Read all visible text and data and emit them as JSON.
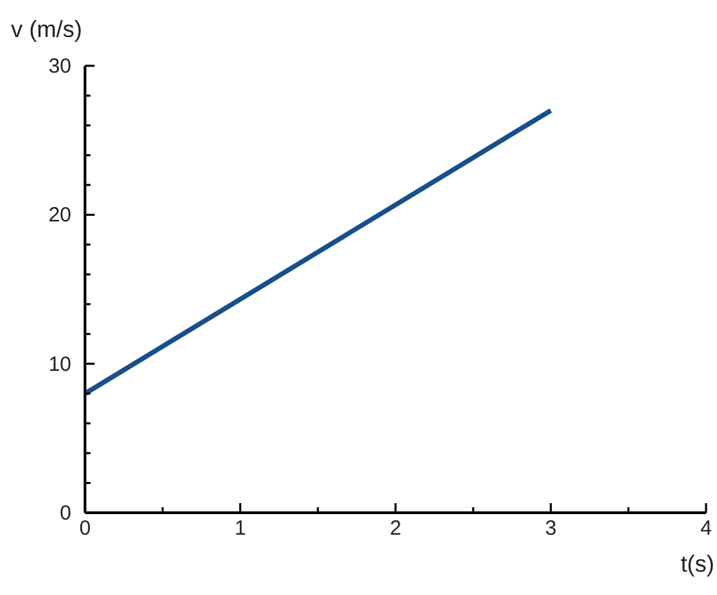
{
  "chart_data": {
    "type": "line",
    "xlabel": "t(s)",
    "ylabel": "v (m/s)",
    "x": [
      0,
      3
    ],
    "series": [
      {
        "color": "#174f8c",
        "values": [
          8,
          27
        ]
      }
    ],
    "xlim": [
      0,
      4
    ],
    "ylim": [
      0,
      30
    ],
    "xticks": [
      0,
      {
        "value": 0.5,
        "label": null
      },
      1,
      {
        "value": 1.5,
        "label": null
      },
      2,
      {
        "value": 2.5,
        "label": null
      },
      3,
      {
        "value": 3.5,
        "label": null
      },
      4
    ],
    "yticks": [
      0,
      {
        "value": 2,
        "label": null
      },
      {
        "value": 4,
        "label": null
      },
      {
        "value": 6,
        "label": null
      },
      {
        "value": 8,
        "label": null
      },
      10,
      {
        "value": 12,
        "label": null
      },
      {
        "value": 14,
        "label": null
      },
      {
        "value": 16,
        "label": null
      },
      {
        "value": 18,
        "label": null
      },
      20,
      {
        "value": 22,
        "label": null
      },
      {
        "value": 24,
        "label": null
      },
      {
        "value": 26,
        "label": null
      },
      {
        "value": 28,
        "label": null
      },
      30
    ],
    "grid": false,
    "marker": "none",
    "line_style": "solid"
  }
}
